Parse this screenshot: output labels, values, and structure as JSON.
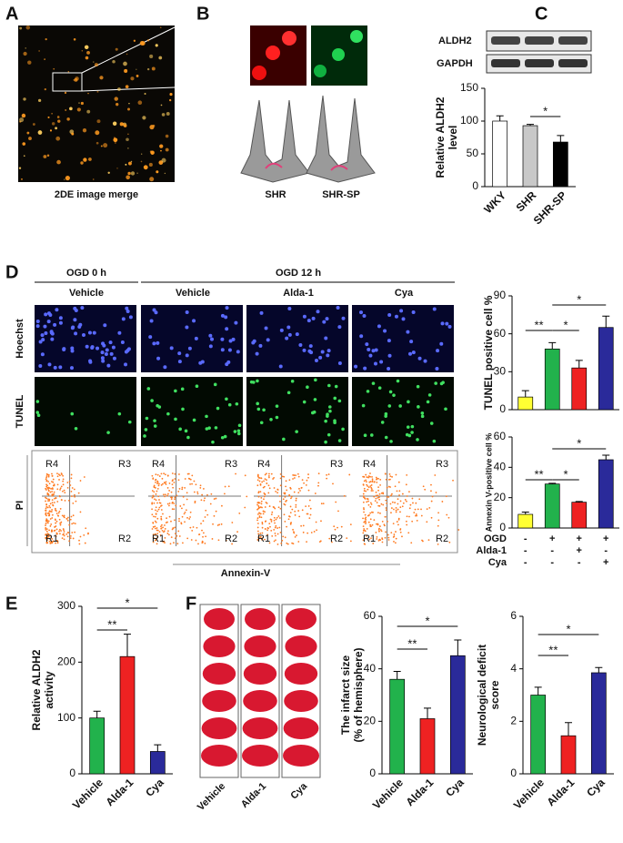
{
  "panels": [
    "A",
    "B",
    "C",
    "D",
    "E",
    "F"
  ],
  "panel_a": {
    "caption": "2DE image merge"
  },
  "panel_b": {
    "labels": [
      "SHR",
      "SHR-SP"
    ]
  },
  "panel_c": {
    "blots": [
      "ALDH2",
      "GAPDH"
    ]
  },
  "panel_d": {
    "group_headers": [
      "OGD 0 h",
      "OGD 12 h"
    ],
    "column_headers": [
      "Vehicle",
      "Vehicle",
      "Alda-1",
      "Cya"
    ],
    "row_labels": [
      "Hoechst",
      "TUNEL",
      "PI"
    ],
    "flow_x_label": "Annexin-V",
    "gates": [
      "R1",
      "R2",
      "R3",
      "R4"
    ]
  },
  "panel_f": {
    "image_labels": [
      "Vehicle",
      "Alda-1",
      "Cya"
    ]
  },
  "chart_data": [
    {
      "type": "bar",
      "ylabel": [
        "Relative ALDH2",
        "level"
      ],
      "categories": [
        "WKY",
        "SHR",
        "SHR-SP"
      ],
      "values": [
        100,
        93,
        68
      ],
      "errors": [
        8,
        2,
        10
      ],
      "colors": [
        "#ffffff",
        "#c8c8c8",
        "#000000"
      ],
      "ylim": [
        0,
        150
      ],
      "yticks": [
        0,
        50,
        100,
        150
      ],
      "annotations": [
        "*"
      ]
    },
    {
      "type": "bar",
      "ylabel": [
        "TUNEL positive cell %"
      ],
      "values": [
        10,
        48,
        33,
        65
      ],
      "errors": [
        5,
        5,
        6,
        9
      ],
      "colors": [
        "#ffff33",
        "#22b24c",
        "#ee2222",
        "#2a2a9a"
      ],
      "ylim": [
        0,
        90
      ],
      "yticks": [
        0,
        30,
        60,
        90
      ],
      "annotations": [
        "**",
        "*",
        "*"
      ]
    },
    {
      "type": "bar",
      "ylabel": [
        "Annexin V-positive cell %"
      ],
      "values": [
        9,
        29,
        17,
        45
      ],
      "errors": [
        1.5,
        0.5,
        0.5,
        3
      ],
      "colors": [
        "#ffff33",
        "#22b24c",
        "#ee2222",
        "#2a2a9a"
      ],
      "ylim": [
        0,
        60
      ],
      "yticks": [
        0,
        20,
        40,
        60
      ],
      "annotations": [
        "**",
        "*",
        "*"
      ],
      "conditions": [
        {
          "name": "OGD",
          "marks": [
            "-",
            "+",
            "+",
            "+"
          ]
        },
        {
          "name": "Alda-1",
          "marks": [
            "-",
            "-",
            "+",
            "-"
          ]
        },
        {
          "name": "Cya",
          "marks": [
            "-",
            "-",
            "-",
            "+"
          ]
        }
      ]
    },
    {
      "type": "bar",
      "ylabel": [
        "Relative ALDH2",
        "activity"
      ],
      "categories": [
        "Vehicle",
        "Alda-1",
        "Cya"
      ],
      "values": [
        100,
        210,
        40
      ],
      "errors": [
        12,
        40,
        12
      ],
      "colors": [
        "#22b24c",
        "#ee2222",
        "#2a2a9a"
      ],
      "ylim": [
        0,
        300
      ],
      "yticks": [
        0,
        100,
        200,
        300
      ],
      "annotations": [
        "*",
        "**"
      ]
    },
    {
      "type": "bar",
      "ylabel": [
        "The infarct size",
        "(% of hemisphere)"
      ],
      "categories": [
        "Vehicle",
        "Alda-1",
        "Cya"
      ],
      "values": [
        36,
        21,
        45
      ],
      "errors": [
        3,
        4,
        6
      ],
      "colors": [
        "#22b24c",
        "#ee2222",
        "#2a2a9a"
      ],
      "ylim": [
        0,
        60
      ],
      "yticks": [
        0,
        20,
        40,
        60
      ],
      "annotations": [
        "*",
        "**"
      ]
    },
    {
      "type": "bar",
      "ylabel": [
        "Neurological deficit",
        "score"
      ],
      "categories": [
        "Vehicle",
        "Alda-1",
        "Cya"
      ],
      "values": [
        3.0,
        1.45,
        3.85
      ],
      "errors": [
        0.3,
        0.5,
        0.2
      ],
      "colors": [
        "#22b24c",
        "#ee2222",
        "#2a2a9a"
      ],
      "ylim": [
        0,
        6
      ],
      "yticks": [
        0,
        2,
        4,
        6
      ],
      "annotations": [
        "*",
        "**"
      ]
    }
  ]
}
